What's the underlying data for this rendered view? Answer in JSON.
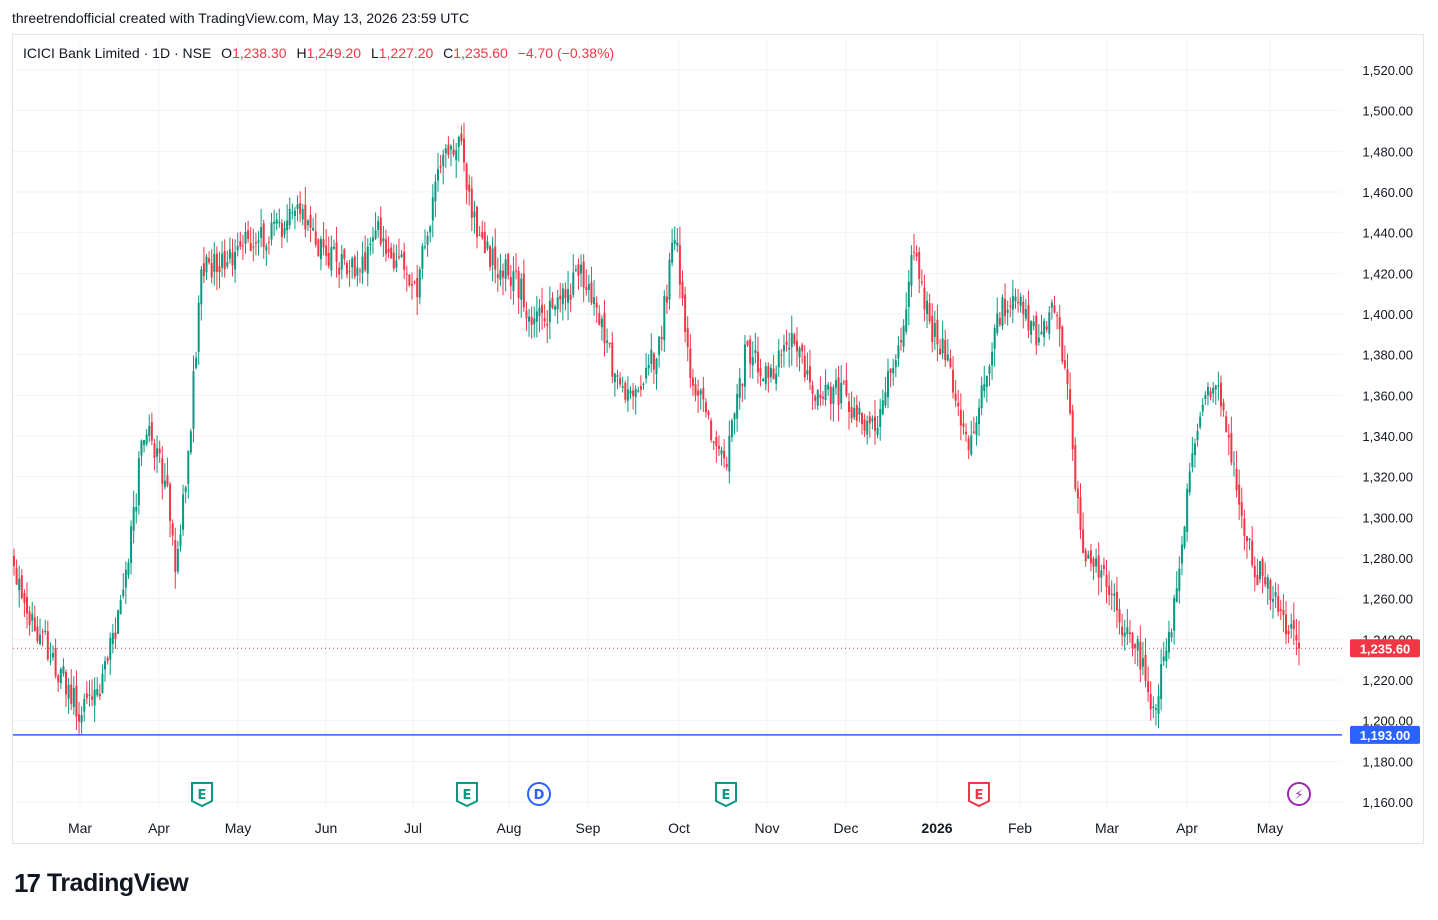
{
  "header": {
    "attribution": "threetrendofficial created with TradingView.com, May 13, 2026 23:59 UTC"
  },
  "legend": {
    "symbol": "ICICI Bank Limited · 1D · NSE",
    "open_label": "O",
    "open": "1,238.30",
    "high_label": "H",
    "high": "1,249.20",
    "low_label": "L",
    "low": "1,227.20",
    "close_label": "C",
    "close": "1,235.60",
    "change": "−4.70 (−0.38%)"
  },
  "brand": {
    "mark": "17",
    "name": "TradingView"
  },
  "colors": {
    "up": "#089981",
    "down": "#f23645",
    "line": "#2962ff",
    "grid": "#f0f3fa",
    "text": "#131722"
  },
  "chart_data": {
    "type": "candlestick",
    "y_axis": {
      "min": 1160,
      "max": 1520,
      "step": 20,
      "ticks": [
        "1,160.00",
        "1,180.00",
        "1,200.00",
        "1,220.00",
        "1,240.00",
        "1,260.00",
        "1,280.00",
        "1,300.00",
        "1,320.00",
        "1,340.00",
        "1,360.00",
        "1,380.00",
        "1,400.00",
        "1,420.00",
        "1,440.00",
        "1,460.00",
        "1,480.00",
        "1,500.00",
        "1,520.00"
      ]
    },
    "x_axis": {
      "labels": [
        {
          "label": "Mar",
          "bold": false
        },
        {
          "label": "Apr",
          "bold": false
        },
        {
          "label": "May",
          "bold": false
        },
        {
          "label": "Jun",
          "bold": false
        },
        {
          "label": "Jul",
          "bold": false
        },
        {
          "label": "Aug",
          "bold": false
        },
        {
          "label": "Sep",
          "bold": false
        },
        {
          "label": "Oct",
          "bold": false
        },
        {
          "label": "Nov",
          "bold": false
        },
        {
          "label": "Dec",
          "bold": false
        },
        {
          "label": "2026",
          "bold": true
        },
        {
          "label": "Feb",
          "bold": false
        },
        {
          "label": "Mar",
          "bold": false
        },
        {
          "label": "Apr",
          "bold": false
        },
        {
          "label": "May",
          "bold": false
        }
      ]
    },
    "last_price": {
      "value": 1235.6,
      "label": "1,235.60"
    },
    "horizontal_line": {
      "value": 1193.0,
      "label": "1,193.00"
    },
    "events": [
      {
        "type": "E",
        "kind": "earnings",
        "month": "Apr",
        "color": "#089981"
      },
      {
        "type": "E",
        "kind": "earnings",
        "month": "Jul",
        "color": "#089981"
      },
      {
        "type": "D",
        "kind": "dividend",
        "month": "Aug",
        "color": "#2962ff"
      },
      {
        "type": "E",
        "kind": "earnings",
        "month": "Oct",
        "color": "#089981"
      },
      {
        "type": "E",
        "kind": "earnings",
        "month": "Jan",
        "color": "#f23645"
      },
      {
        "type": "⚡",
        "kind": "upcoming",
        "month": "May",
        "color": "#9c27b0"
      }
    ],
    "anchors": [
      [
        0,
        1270
      ],
      [
        15,
        1230
      ],
      [
        25,
        1205
      ],
      [
        33,
        1215
      ],
      [
        40,
        1250
      ],
      [
        45,
        1290
      ],
      [
        50,
        1345
      ],
      [
        58,
        1320
      ],
      [
        62,
        1275
      ],
      [
        67,
        1330
      ],
      [
        72,
        1420
      ],
      [
        80,
        1425
      ],
      [
        90,
        1435
      ],
      [
        100,
        1440
      ],
      [
        110,
        1448
      ],
      [
        120,
        1430
      ],
      [
        132,
        1420
      ],
      [
        140,
        1440
      ],
      [
        148,
        1425
      ],
      [
        155,
        1415
      ],
      [
        165,
        1485
      ],
      [
        172,
        1480
      ],
      [
        178,
        1440
      ],
      [
        185,
        1425
      ],
      [
        192,
        1420
      ],
      [
        200,
        1395
      ],
      [
        210,
        1405
      ],
      [
        218,
        1420
      ],
      [
        225,
        1400
      ],
      [
        232,
        1365
      ],
      [
        240,
        1360
      ],
      [
        248,
        1385
      ],
      [
        254,
        1440
      ],
      [
        260,
        1375
      ],
      [
        268,
        1340
      ],
      [
        274,
        1330
      ],
      [
        282,
        1385
      ],
      [
        290,
        1365
      ],
      [
        300,
        1390
      ],
      [
        308,
        1360
      ],
      [
        318,
        1362
      ],
      [
        330,
        1342
      ],
      [
        340,
        1385
      ],
      [
        346,
        1430
      ],
      [
        352,
        1395
      ],
      [
        360,
        1375
      ],
      [
        366,
        1335
      ],
      [
        372,
        1360
      ],
      [
        378,
        1400
      ],
      [
        386,
        1405
      ],
      [
        394,
        1385
      ],
      [
        400,
        1405
      ],
      [
        405,
        1365
      ],
      [
        410,
        1290
      ],
      [
        416,
        1275
      ],
      [
        422,
        1265
      ],
      [
        428,
        1240
      ],
      [
        434,
        1230
      ],
      [
        438,
        1205
      ],
      [
        444,
        1240
      ],
      [
        450,
        1300
      ],
      [
        456,
        1355
      ],
      [
        462,
        1370
      ],
      [
        466,
        1340
      ],
      [
        470,
        1320
      ],
      [
        476,
        1275
      ],
      [
        481,
        1270
      ],
      [
        486,
        1260
      ],
      [
        490,
        1245
      ],
      [
        494,
        1235.6
      ]
    ],
    "ohlc_latest": {
      "open": 1238.3,
      "high": 1249.2,
      "low": 1227.2,
      "close": 1235.6
    }
  }
}
